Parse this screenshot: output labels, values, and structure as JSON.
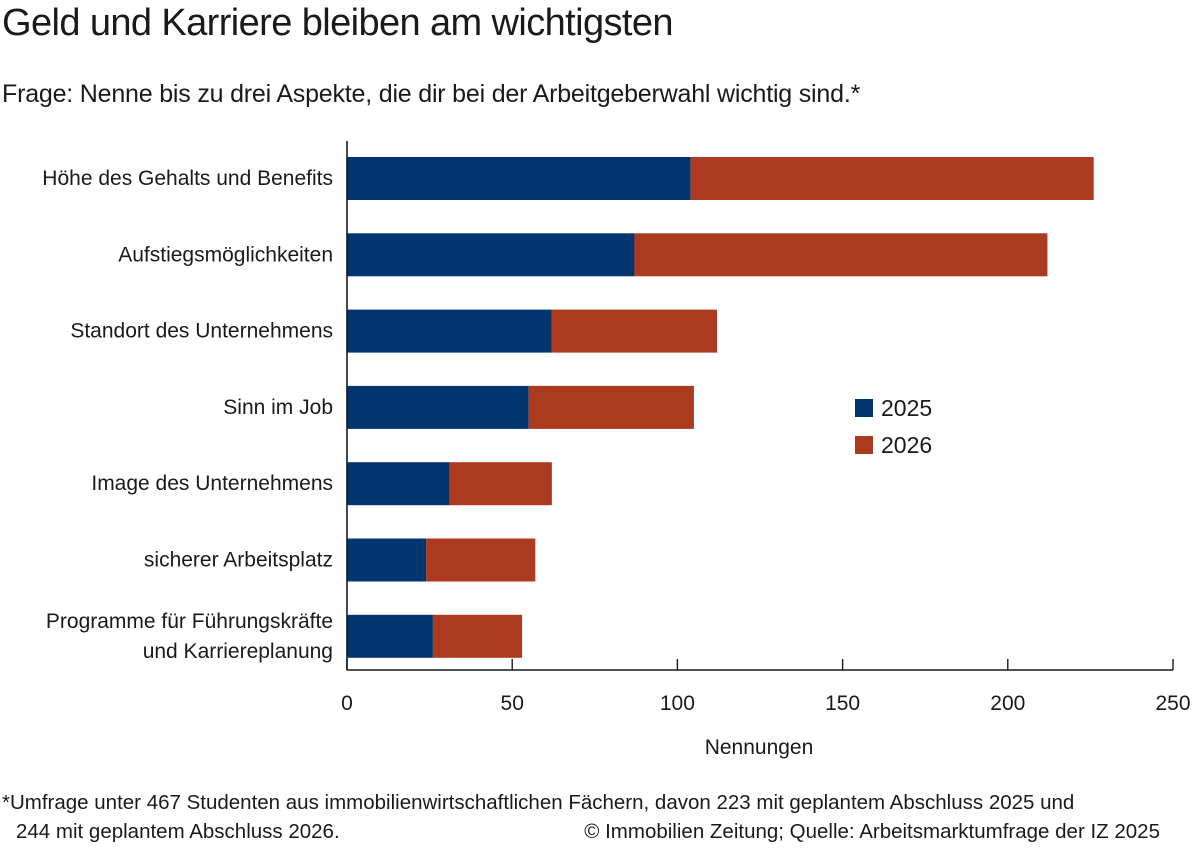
{
  "header": {
    "title": "Geld und Karriere bleiben am wichtigsten",
    "subtitle": "Frage: Nenne bis zu drei Aspekte, die dir bei der Arbeitgeberwahl wichtig sind.*"
  },
  "chart_data": {
    "type": "bar",
    "orientation": "horizontal",
    "stacked": true,
    "categories": [
      [
        "Höhe des Gehalts und Benefits"
      ],
      [
        "Aufstiegsmöglichkeiten"
      ],
      [
        "Standort des Unternehmens"
      ],
      [
        "Sinn im Job"
      ],
      [
        "Image des Unternehmens"
      ],
      [
        "sicherer Arbeitsplatz"
      ],
      [
        "Programme für Führungskräfte",
        "und Karriereplanung"
      ]
    ],
    "series": [
      {
        "name": "2025",
        "color": "#023570",
        "values": [
          104,
          87,
          62,
          55,
          31,
          24,
          26
        ]
      },
      {
        "name": "2026",
        "color": "#ab3a1f",
        "values": [
          122,
          125,
          50,
          50,
          31,
          33,
          27
        ]
      }
    ],
    "xlabel": "Nennungen",
    "ylabel": "",
    "xlim": [
      0,
      250
    ],
    "xticks": [
      0,
      50,
      100,
      150,
      200,
      250
    ],
    "legend_position": "center-right",
    "grid": false
  },
  "footnote": {
    "line1": "*Umfrage unter 467 Studenten aus immobilienwirtschaftlichen Fächern, davon 223 mit geplantem Abschluss 2025 und",
    "line2": "244 mit geplantem Abschluss 2026.",
    "credit": "© Immobilien Zeitung; Quelle: Arbeitsmarktumfrage der IZ 2025"
  }
}
